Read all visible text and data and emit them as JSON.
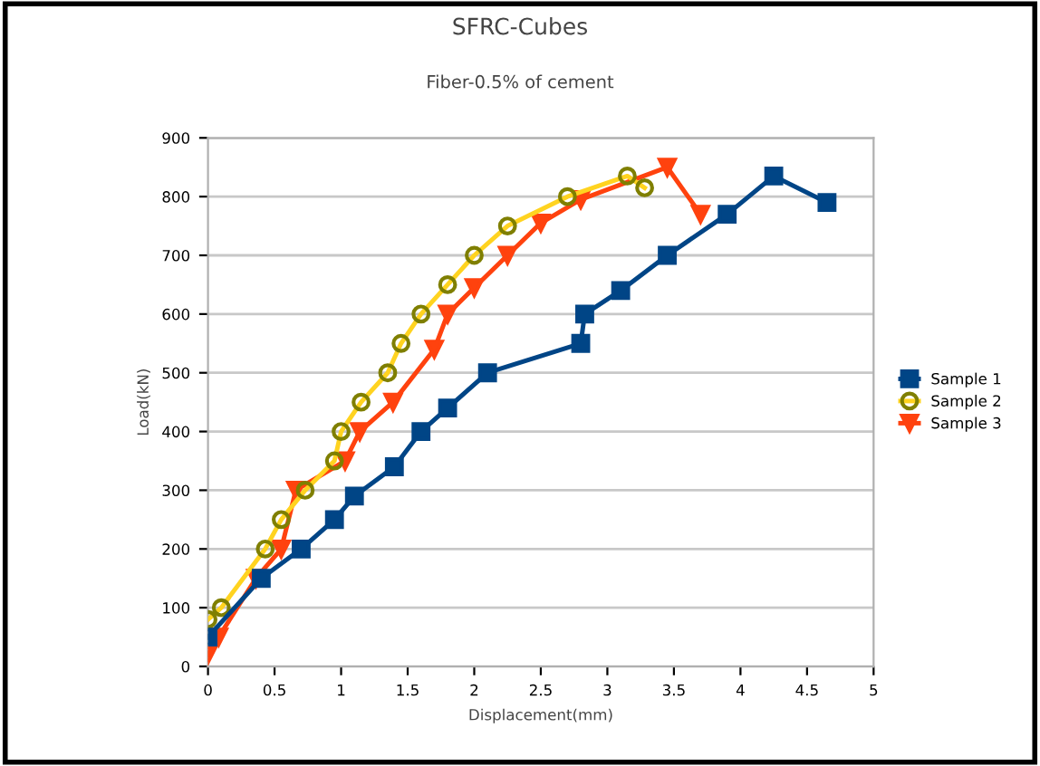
{
  "chart_data": {
    "type": "line",
    "title": "SFRC-Cubes",
    "subtitle": "Fiber-0.5% of cement",
    "xlabel": "Displacement(mm)",
    "ylabel": "Load(kN)",
    "xlim": [
      0,
      5
    ],
    "xticks": [
      0,
      0.5,
      1,
      1.5,
      2,
      2.5,
      3,
      3.5,
      4,
      4.5,
      5
    ],
    "ylim": [
      0,
      900
    ],
    "yticks": [
      0,
      100,
      200,
      300,
      400,
      500,
      600,
      700,
      800,
      900
    ],
    "grid": "y",
    "legend": "right",
    "series": [
      {
        "name": "Sample 1",
        "color": "#004586",
        "marker": "square",
        "x": [
          0,
          0.4,
          0.7,
          0.95,
          1.1,
          1.4,
          1.6,
          1.8,
          2.1,
          2.8,
          2.83,
          3.1,
          3.45,
          3.9,
          4.25,
          4.65
        ],
        "values": [
          50,
          150,
          200,
          250,
          290,
          340,
          400,
          440,
          500,
          550,
          600,
          640,
          700,
          770,
          835,
          790
        ]
      },
      {
        "name": "Sample 2",
        "color": "#ffd320",
        "marker": "circle",
        "x": [
          0,
          0.1,
          0.43,
          0.55,
          0.73,
          0.95,
          1.0,
          1.15,
          1.35,
          1.45,
          1.6,
          1.8,
          2.0,
          2.25,
          2.7,
          3.15,
          3.28
        ],
        "values": [
          80,
          100,
          200,
          250,
          300,
          350,
          400,
          450,
          500,
          550,
          600,
          650,
          700,
          750,
          800,
          835,
          815
        ]
      },
      {
        "name": "Sample 3",
        "color": "#ff420e",
        "marker": "triangle",
        "x": [
          0,
          0.08,
          0.36,
          0.55,
          0.66,
          1.03,
          1.14,
          1.39,
          1.7,
          1.8,
          2.0,
          2.25,
          2.5,
          2.8,
          3.45,
          3.7
        ],
        "values": [
          20,
          50,
          150,
          200,
          300,
          350,
          400,
          450,
          540,
          600,
          645,
          700,
          755,
          795,
          850,
          770
        ]
      }
    ]
  }
}
